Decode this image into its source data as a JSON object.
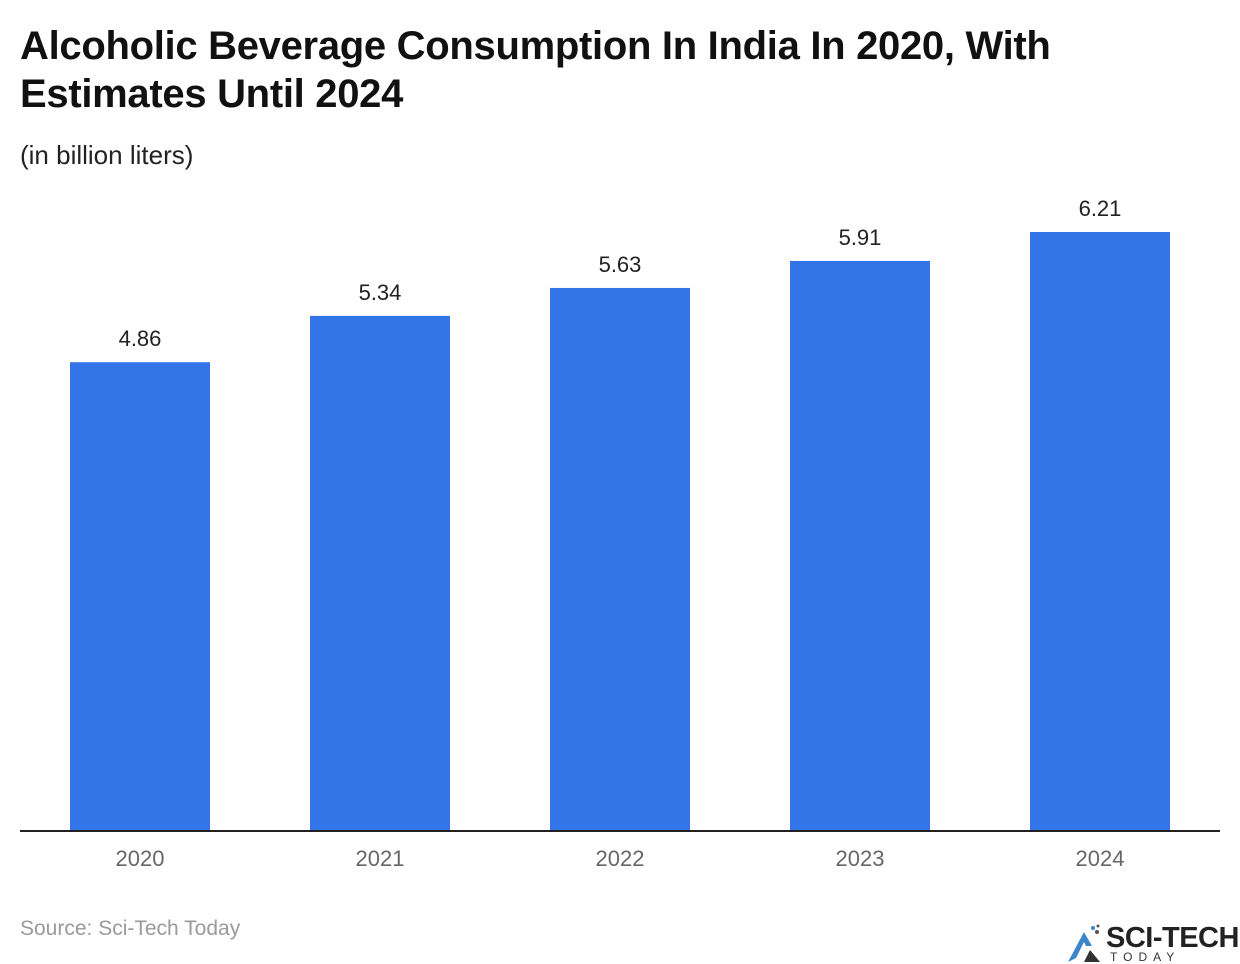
{
  "chart_data": {
    "type": "bar",
    "title": "Alcoholic Beverage Consumption In India In 2020, With Estimates Until 2024",
    "subtitle": "(in billion liters)",
    "categories": [
      "2020",
      "2021",
      "2022",
      "2023",
      "2024"
    ],
    "values": [
      4.86,
      5.34,
      5.63,
      5.91,
      6.21
    ],
    "data_labels": [
      "4.86",
      "5.34",
      "5.63",
      "5.91",
      "6.21"
    ],
    "xlabel": "",
    "ylabel": "",
    "ylim": [
      0,
      6.21
    ],
    "grid": false,
    "y_axis_shown": false,
    "bar_color": "#3374E8"
  },
  "source": "Source: Sci-Tech Today",
  "logo": {
    "main": "SCI-TECH",
    "sub": "TODAY"
  }
}
